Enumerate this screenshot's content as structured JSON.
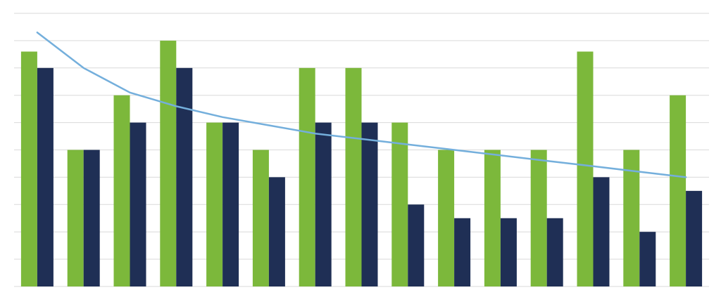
{
  "chart_data": {
    "type": "bar",
    "categories": [
      null,
      null,
      null,
      null,
      null,
      null,
      null,
      null,
      null,
      null,
      null,
      null,
      null,
      null,
      null
    ],
    "series": [
      {
        "color": "#7cb83b",
        "values": [
          8.6,
          5,
          7,
          9,
          6,
          5,
          8,
          8,
          6,
          5,
          5,
          5,
          8.6,
          5,
          7
        ]
      },
      {
        "color": "#1f2f55",
        "values": [
          8,
          5,
          6,
          8,
          6,
          4,
          6,
          6,
          3,
          2.5,
          2.5,
          2.5,
          4,
          2,
          3.5
        ]
      },
      {
        "type": "line",
        "color": "#74afdc",
        "values": [
          9.3,
          8.0,
          7.1,
          6.6,
          6.2,
          5.9,
          5.6,
          5.4,
          5.2,
          5.0,
          4.8,
          4.6,
          4.4,
          4.2,
          4.0
        ]
      }
    ],
    "ylim": [
      0,
      10
    ],
    "yticks": [
      0,
      1,
      2,
      3,
      4,
      5,
      6,
      7,
      8,
      9,
      10
    ],
    "grid": true
  }
}
